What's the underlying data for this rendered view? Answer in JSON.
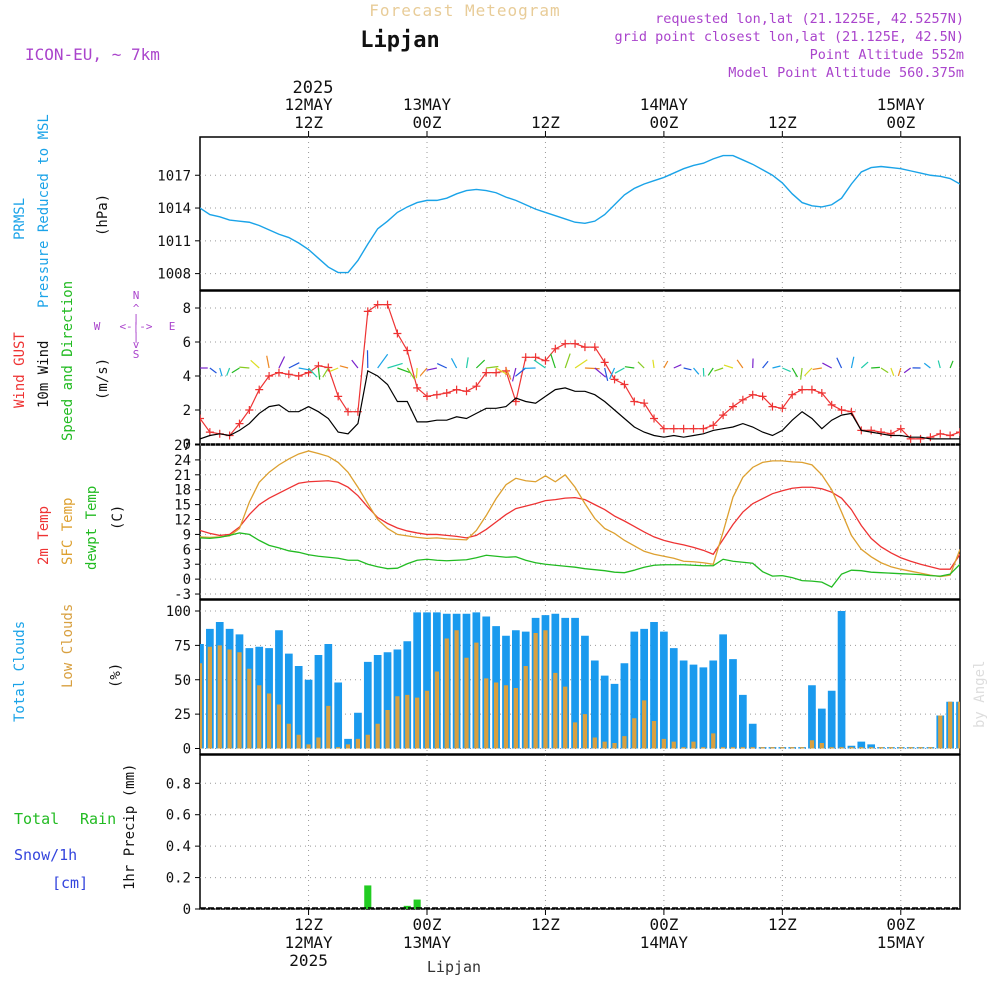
{
  "header": {
    "title": "Forecast Meteogram",
    "location": "Lipjan",
    "model": "ICON-EU, ~ 7km",
    "requested": "requested lon,lat (21.1225E, 42.5257N)",
    "gridpoint": "grid point closest lon,lat (21.125E, 42.5N)",
    "altitude": "Point Altitude 552m",
    "model_altitude": "Model Point Altitude 560.375m",
    "credit": "by Angel",
    "footer_location": "Lipjan"
  },
  "colors": {
    "pressure": "#1aa3e8",
    "gust": "#ee3333",
    "wind": "#000000",
    "direction": "#22bb22",
    "temp2m": "#ee3333",
    "sfc": "#dda030",
    "dewpt": "#22bb22",
    "total_clouds": "#1a9aee",
    "low_clouds": "#d8a040",
    "rain": "#22cc22",
    "snow": "#3344dd",
    "label_purple": "#aa44cc"
  },
  "time_axis": {
    "top_year": "2025",
    "top_labels": [
      {
        "day": "12MAY",
        "hour": "12Z"
      },
      {
        "day": "13MAY",
        "hour": "00Z"
      },
      {
        "day": "",
        "hour": "12Z"
      },
      {
        "day": "14MAY",
        "hour": "00Z"
      },
      {
        "day": "",
        "hour": "12Z"
      },
      {
        "day": "15MAY",
        "hour": "00Z"
      }
    ],
    "bottom_labels": [
      {
        "hour": "12Z",
        "day": "12MAY",
        "year": "2025"
      },
      {
        "hour": "00Z",
        "day": "13MAY",
        "year": ""
      },
      {
        "hour": "12Z",
        "day": "",
        "year": ""
      },
      {
        "hour": "00Z",
        "day": "14MAY",
        "year": ""
      },
      {
        "hour": "12Z",
        "day": "",
        "year": ""
      },
      {
        "hour": "00Z",
        "day": "15MAY",
        "year": ""
      }
    ],
    "tick_hours": [
      12,
      24,
      36,
      48,
      60,
      72
    ],
    "start_hour": 1,
    "end_hour": 78
  },
  "labels": {
    "pressure_a": "PRMSL",
    "pressure_b": "Pressure Reduced to MSL",
    "pressure_unit": "(hPa)",
    "wind_a": "Wind GUST",
    "wind_b": "10m Wind",
    "wind_c": "Speed and Direction",
    "wind_unit": "(m/s)",
    "compass_n": "N",
    "compass_s": "S",
    "compass_w": "W",
    "compass_e": "E",
    "temp_a": "2m Temp",
    "temp_b": "SFC Temp",
    "temp_c": "dewpt Temp",
    "temp_unit": "(C)",
    "cloud_a": "Total Clouds",
    "cloud_b": "Low Clouds",
    "cloud_unit": "(%)",
    "precip_a": "Total",
    "precip_b": "Rain",
    "precip_c": "Snow/1h",
    "precip_d": "[cm]",
    "precip_unit": "1hr Precip (mm)"
  },
  "chart_data": [
    {
      "type": "line",
      "panel": "pressure",
      "ylim": [
        1006.5,
        1020.5
      ],
      "yticks": [
        "1008",
        "1011",
        "1014",
        "1017"
      ],
      "x": [
        1,
        2,
        3,
        4,
        5,
        6,
        7,
        8,
        9,
        10,
        11,
        12,
        13,
        14,
        15,
        16,
        17,
        18,
        19,
        20,
        21,
        22,
        23,
        24,
        25,
        26,
        27,
        28,
        29,
        30,
        31,
        32,
        33,
        34,
        35,
        36,
        37,
        38,
        39,
        40,
        41,
        42,
        43,
        44,
        45,
        46,
        47,
        48,
        49,
        50,
        51,
        52,
        53,
        54,
        55,
        56,
        57,
        58,
        59,
        60,
        61,
        62,
        63,
        64,
        65,
        66,
        67,
        68,
        69,
        70,
        71,
        72,
        73,
        74,
        75,
        76,
        77,
        78
      ],
      "series": [
        {
          "values": [
            1014.0,
            1013.4,
            1013.2,
            1012.9,
            1012.8,
            1012.7,
            1012.4,
            1012.0,
            1011.6,
            1011.3,
            1010.8,
            1010.2,
            1009.4,
            1008.6,
            1008.1,
            1008.1,
            1009.2,
            1010.7,
            1012.1,
            1012.8,
            1013.6,
            1014.1,
            1014.5,
            1014.7,
            1014.7,
            1014.9,
            1015.3,
            1015.6,
            1015.7,
            1015.6,
            1015.4,
            1015.0,
            1014.7,
            1014.3,
            1013.9,
            1013.6,
            1013.3,
            1013.0,
            1012.7,
            1012.6,
            1012.8,
            1013.4,
            1014.3,
            1015.2,
            1015.8,
            1016.2,
            1016.5,
            1016.8,
            1017.2,
            1017.6,
            1017.9,
            1018.1,
            1018.5,
            1018.8,
            1018.8,
            1018.4,
            1018.0,
            1017.5,
            1017.0,
            1016.3,
            1015.3,
            1014.5,
            1014.2,
            1014.1,
            1014.3,
            1014.9,
            1016.2,
            1017.3,
            1017.7,
            1017.8,
            1017.7,
            1017.6,
            1017.4,
            1017.2,
            1017.0,
            1016.9,
            1016.7,
            1016.2
          ]
        }
      ]
    },
    {
      "type": "line",
      "panel": "wind",
      "ylim": [
        0,
        9
      ],
      "yticks": [
        "0",
        "2",
        "4",
        "6",
        "8"
      ],
      "x": [
        1,
        2,
        3,
        4,
        5,
        6,
        7,
        8,
        9,
        10,
        11,
        12,
        13,
        14,
        15,
        16,
        17,
        18,
        19,
        20,
        21,
        22,
        23,
        24,
        25,
        26,
        27,
        28,
        29,
        30,
        31,
        32,
        33,
        34,
        35,
        36,
        37,
        38,
        39,
        40,
        41,
        42,
        43,
        44,
        45,
        46,
        47,
        48,
        49,
        50,
        51,
        52,
        53,
        54,
        55,
        56,
        57,
        58,
        59,
        60,
        61,
        62,
        63,
        64,
        65,
        66,
        67,
        68,
        69,
        70,
        71,
        72,
        73,
        74,
        75,
        76,
        77,
        78
      ],
      "series": [
        {
          "name": "Wind GUST",
          "values": [
            1.5,
            0.7,
            0.6,
            0.5,
            1.2,
            2.0,
            3.2,
            4.0,
            4.2,
            4.1,
            4.0,
            4.2,
            4.6,
            4.5,
            2.8,
            1.9,
            1.9,
            7.8,
            8.2,
            8.2,
            6.5,
            5.5,
            3.3,
            2.8,
            2.9,
            3.0,
            3.2,
            3.1,
            3.4,
            4.2,
            4.2,
            4.3,
            2.5,
            5.1,
            5.1,
            4.9,
            5.6,
            5.9,
            5.9,
            5.7,
            5.7,
            4.8,
            3.8,
            3.5,
            2.5,
            2.4,
            1.5,
            0.9,
            0.9,
            0.9,
            0.9,
            0.9,
            1.1,
            1.7,
            2.2,
            2.6,
            2.9,
            2.8,
            2.2,
            2.1,
            2.9,
            3.2,
            3.2,
            3.0,
            2.3,
            2.0,
            1.9,
            0.8,
            0.8,
            0.7,
            0.6,
            0.9,
            0.3,
            0.3,
            0.4,
            0.6,
            0.5,
            0.7
          ]
        },
        {
          "name": "10m Wind",
          "values": [
            0.3,
            0.5,
            0.6,
            0.5,
            0.8,
            1.2,
            1.8,
            2.2,
            2.3,
            1.9,
            1.9,
            2.2,
            1.9,
            1.5,
            0.7,
            0.6,
            1.2,
            4.3,
            4.0,
            3.5,
            2.5,
            2.5,
            1.3,
            1.3,
            1.4,
            1.4,
            1.6,
            1.5,
            1.8,
            2.1,
            2.1,
            2.2,
            2.7,
            2.5,
            2.4,
            2.8,
            3.2,
            3.3,
            3.1,
            3.1,
            2.9,
            2.5,
            2.0,
            1.5,
            1.0,
            0.7,
            0.5,
            0.4,
            0.5,
            0.4,
            0.5,
            0.6,
            0.8,
            0.9,
            1.0,
            1.2,
            1.0,
            0.7,
            0.5,
            0.8,
            1.4,
            1.9,
            1.5,
            0.9,
            1.4,
            1.7,
            1.8,
            0.8,
            0.7,
            0.6,
            0.5,
            0.5,
            0.4,
            0.4,
            0.3,
            0.3,
            0.3,
            0.3
          ]
        }
      ]
    },
    {
      "type": "line",
      "panel": "temperature",
      "ylim": [
        -4,
        27
      ],
      "yticks": [
        "-3",
        "0",
        "3",
        "6",
        "9",
        "12",
        "15",
        "18",
        "21",
        "24",
        "27"
      ],
      "x": [
        1,
        2,
        3,
        4,
        5,
        6,
        7,
        8,
        9,
        10,
        11,
        12,
        13,
        14,
        15,
        16,
        17,
        18,
        19,
        20,
        21,
        22,
        23,
        24,
        25,
        26,
        27,
        28,
        29,
        30,
        31,
        32,
        33,
        34,
        35,
        36,
        37,
        38,
        39,
        40,
        41,
        42,
        43,
        44,
        45,
        46,
        47,
        48,
        49,
        50,
        51,
        52,
        53,
        54,
        55,
        56,
        57,
        58,
        59,
        60,
        61,
        62,
        63,
        64,
        65,
        66,
        67,
        68,
        69,
        70,
        71,
        72,
        73,
        74,
        75,
        76,
        77,
        78
      ],
      "series": [
        {
          "name": "2m Temp",
          "values": [
            9.8,
            9.2,
            8.8,
            9.0,
            10.5,
            13.0,
            15.0,
            16.3,
            17.3,
            18.3,
            19.3,
            19.6,
            19.7,
            19.8,
            19.5,
            18.5,
            16.8,
            14.5,
            12.4,
            11.2,
            10.3,
            9.7,
            9.3,
            9.0,
            9.0,
            8.8,
            8.6,
            8.3,
            8.8,
            10.0,
            11.5,
            13.0,
            14.2,
            14.7,
            15.2,
            15.8,
            16.0,
            16.3,
            16.4,
            16.0,
            15.0,
            14.0,
            12.7,
            11.7,
            10.6,
            9.5,
            8.5,
            7.8,
            7.3,
            6.9,
            6.4,
            5.8,
            5.0,
            8.0,
            11.0,
            13.5,
            15.2,
            16.2,
            17.2,
            17.8,
            18.3,
            18.5,
            18.5,
            18.2,
            17.5,
            16.3,
            14.0,
            10.8,
            8.2,
            6.5,
            5.3,
            4.3,
            3.6,
            3.0,
            2.5,
            2.0,
            2.0,
            5.0
          ]
        },
        {
          "name": "SFC Temp",
          "values": [
            8.5,
            8.4,
            8.5,
            8.7,
            10.2,
            15.5,
            19.5,
            21.5,
            23.0,
            24.2,
            25.2,
            25.8,
            25.3,
            24.7,
            23.5,
            21.5,
            18.5,
            15.2,
            12.0,
            10.2,
            9.0,
            8.7,
            8.4,
            8.2,
            8.3,
            8.1,
            8.0,
            7.9,
            9.8,
            12.8,
            16.2,
            19.0,
            20.3,
            19.8,
            19.6,
            20.8,
            19.6,
            21.0,
            18.5,
            15.2,
            12.2,
            10.2,
            9.2,
            7.8,
            6.7,
            5.6,
            5.0,
            4.6,
            4.2,
            3.6,
            3.5,
            3.3,
            3.0,
            9.5,
            16.5,
            20.5,
            22.5,
            23.5,
            23.8,
            23.8,
            23.6,
            23.5,
            23.0,
            21.0,
            18.0,
            13.5,
            8.8,
            6.0,
            4.5,
            3.3,
            2.5,
            2.0,
            1.6,
            1.2,
            0.8,
            0.5,
            0.8,
            6.0
          ]
        },
        {
          "name": "dewpt Temp",
          "values": [
            8.3,
            8.2,
            8.4,
            8.8,
            9.3,
            9.0,
            7.8,
            6.8,
            6.3,
            5.7,
            5.4,
            4.9,
            4.6,
            4.4,
            4.2,
            3.8,
            3.8,
            3.0,
            2.5,
            2.1,
            2.2,
            3.1,
            3.8,
            4.0,
            3.8,
            3.7,
            3.8,
            3.9,
            4.3,
            4.8,
            4.6,
            4.4,
            4.5,
            3.8,
            3.3,
            3.0,
            2.8,
            2.6,
            2.4,
            2.1,
            1.9,
            1.7,
            1.4,
            1.3,
            1.8,
            2.4,
            2.8,
            2.9,
            2.9,
            2.9,
            2.8,
            2.7,
            2.7,
            4.0,
            3.6,
            3.4,
            3.2,
            1.5,
            0.6,
            0.7,
            0.3,
            -0.3,
            -0.4,
            -0.6,
            -1.6,
            1.0,
            1.8,
            1.7,
            1.4,
            1.3,
            1.2,
            1.1,
            1.0,
            0.9,
            0.7,
            0.6,
            1.0,
            3.0
          ]
        }
      ]
    },
    {
      "type": "bar",
      "panel": "clouds",
      "ylim": [
        -4,
        108
      ],
      "yticks": [
        "0",
        "25",
        "50",
        "75",
        "100"
      ],
      "x": [
        1,
        2,
        3,
        4,
        5,
        6,
        7,
        8,
        9,
        10,
        11,
        12,
        13,
        14,
        15,
        16,
        17,
        18,
        19,
        20,
        21,
        22,
        23,
        24,
        25,
        26,
        27,
        28,
        29,
        30,
        31,
        32,
        33,
        34,
        35,
        36,
        37,
        38,
        39,
        40,
        41,
        42,
        43,
        44,
        45,
        46,
        47,
        48,
        49,
        50,
        51,
        52,
        53,
        54,
        55,
        56,
        57,
        58,
        59,
        60,
        61,
        62,
        63,
        64,
        65,
        66,
        67,
        68,
        69,
        70,
        71,
        72,
        73,
        74,
        75,
        76,
        77,
        78
      ],
      "series": [
        {
          "name": "Total Clouds",
          "values": [
            76,
            87,
            92,
            87,
            83,
            73,
            74,
            73,
            86,
            69,
            60,
            50,
            68,
            76,
            48,
            7,
            26,
            63,
            68,
            70,
            72,
            78,
            99,
            99,
            99,
            98,
            98,
            98,
            99,
            96,
            89,
            82,
            86,
            85,
            95,
            97,
            98,
            95,
            95,
            82,
            64,
            53,
            47,
            62,
            85,
            87,
            92,
            85,
            73,
            64,
            61,
            59,
            64,
            83,
            65,
            39,
            18,
            1,
            1,
            1,
            1,
            1,
            46,
            29,
            42,
            100,
            2,
            5,
            3,
            1,
            1,
            1,
            1,
            1,
            1,
            24,
            34,
            34
          ]
        },
        {
          "name": "Low Clouds",
          "values": [
            62,
            74,
            75,
            72,
            70,
            58,
            46,
            40,
            32,
            18,
            10,
            3,
            8,
            31,
            1,
            3,
            7,
            10,
            18,
            28,
            38,
            39,
            37,
            42,
            56,
            80,
            86,
            66,
            77,
            51,
            48,
            46,
            44,
            60,
            84,
            86,
            55,
            45,
            19,
            25,
            8,
            5,
            4,
            9,
            22,
            35,
            20,
            7,
            5,
            1,
            5,
            1,
            11,
            1,
            1,
            1,
            1,
            1,
            1,
            1,
            1,
            1,
            6,
            4,
            1,
            1,
            1,
            1,
            1,
            1,
            1,
            1,
            1,
            1,
            1,
            24,
            34,
            34
          ]
        }
      ]
    },
    {
      "type": "bar",
      "panel": "precipitation",
      "ylim": [
        0,
        0.98
      ],
      "yticks": [
        "0",
        "0.2",
        "0.4",
        "0.6",
        "0.8"
      ],
      "series": [
        {
          "name": "Total Rain",
          "points": [
            {
              "x": 18,
              "y": 0.15
            },
            {
              "x": 22,
              "y": 0.02
            },
            {
              "x": 23,
              "y": 0.06
            }
          ]
        }
      ]
    }
  ]
}
